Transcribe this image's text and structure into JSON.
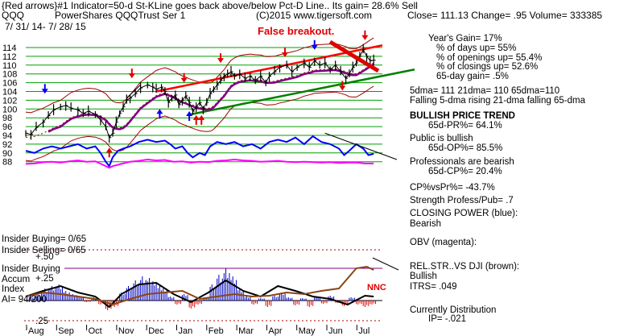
{
  "header": {
    "line1": "{Red arrows}#1 Indicator=50-d St-KLine goes back above/below Pct-D Line.. Its gain= 28.6% Sell",
    "ticker": "QQQ",
    "name": "PowerShares QQQTrust Ser 1",
    "copyright": "(C)2015 www.tigersoft.com",
    "quote": "Close=  111.13  Change= .95 Volume= 333385",
    "dates": "7/ 31/ 14-  7/ 28/ 15"
  },
  "annotations": {
    "false_breakout": "False breakout.",
    "nnc": "NNC"
  },
  "stats": [
    {
      "text": "Year's Gain= 17%",
      "bold": false
    },
    {
      "text": "% of days up= 55%",
      "bold": false
    },
    {
      "text": "% of openings up= 55.4%",
      "bold": false
    },
    {
      "text": "% of closings up= 52.6%",
      "bold": false
    },
    {
      "text": "65-day gain= .5%",
      "bold": false
    },
    {
      "text": "5dma= 111  21dma= 110  65dma=110",
      "bold": false
    },
    {
      "text": "Falling 5-dma rising 21-dma  falling 65-dma",
      "bold": false
    },
    {
      "text": "BULLISH PRICE TREND",
      "bold": true
    },
    {
      "text": "65d-PR%= 64.1%",
      "bold": false
    },
    {
      "text": "Public is bullish",
      "bold": false
    },
    {
      "text": "65d-OP%= 85.5%",
      "bold": false
    },
    {
      "text": "Professionals are bearish",
      "bold": false
    },
    {
      "text": "65d-CP%= 20.4%",
      "bold": false
    },
    {
      "text": "CP%vsPr%= -43.7%",
      "bold": false
    },
    {
      "text": "Strength Profess/Pub= .7",
      "bold": false
    },
    {
      "text": "CLOSING POWER (blue):",
      "bold": false
    },
    {
      "text": "Bearish",
      "bold": false
    },
    {
      "text": "OBV (magenta):",
      "bold": false
    },
    {
      "text": "REL.STR..VS DJI (brown):",
      "bold": false
    },
    {
      "text": "Bullish",
      "bold": false
    },
    {
      "text": "ITRS= .049",
      "bold": false
    },
    {
      "text": "Currently Distribution",
      "bold": false
    },
    {
      "text": "IP= -.021",
      "bold": false
    }
  ],
  "insider": {
    "buying": "Insider Buying= 0/65",
    "selling": "Insider Selling= 0/65",
    "box_label": "Insider Buying",
    "accum": "Accum",
    "index": "Index",
    "ai": "AI= 94/200",
    "p50": "+.50",
    "p25": "+.25",
    "m25": ".25"
  },
  "colors": {
    "price": "#000000",
    "upper_channel": "#ff0000",
    "lower_channel": "#008000",
    "ma65": "#800080",
    "band": "#a00000",
    "closing_power": "#0000ff",
    "obv": "#ff00ff",
    "rel_strength": "#8b4513",
    "accum_up": "#0000c0",
    "accum_down": "#e00000",
    "gridline": "#00a000"
  },
  "chart_data": {
    "type": "line",
    "y_ticks": [
      88,
      90,
      92,
      94,
      96,
      98,
      100,
      102,
      104,
      106,
      108,
      110,
      112,
      114
    ],
    "ylim": [
      86,
      116
    ],
    "x_ticks": [
      "Aug",
      "Sep",
      "Oct",
      "Nov",
      "Dec",
      "Jan",
      "Feb",
      "Mar",
      "Apr",
      "May",
      "Jun",
      "Jul"
    ],
    "price_series": [
      [
        0,
        94.5
      ],
      [
        0.3,
        94.2
      ],
      [
        0.6,
        95.8
      ],
      [
        1,
        97
      ],
      [
        1.3,
        98.5
      ],
      [
        1.6,
        99.8
      ],
      [
        2,
        100.5
      ],
      [
        2.3,
        100.8
      ],
      [
        2.6,
        100.2
      ],
      [
        3,
        99.8
      ],
      [
        3.3,
        99
      ],
      [
        3.6,
        99.5
      ],
      [
        4,
        98.8
      ],
      [
        4.3,
        97.5
      ],
      [
        4.6,
        96
      ],
      [
        4.8,
        93.5
      ],
      [
        5,
        94.5
      ],
      [
        5.2,
        97
      ],
      [
        5.4,
        99
      ],
      [
        5.6,
        100.5
      ],
      [
        5.8,
        102
      ],
      [
        6,
        102.5
      ],
      [
        6.3,
        103.5
      ],
      [
        6.6,
        104.8
      ],
      [
        7,
        105.5
      ],
      [
        7.3,
        105
      ],
      [
        7.5,
        104.5
      ],
      [
        7.8,
        105
      ],
      [
        8,
        104
      ],
      [
        8.2,
        101.5
      ],
      [
        8.4,
        102.5
      ],
      [
        8.6,
        103.2
      ],
      [
        8.8,
        101
      ],
      [
        9,
        102
      ],
      [
        9.2,
        103
      ],
      [
        9.4,
        101.5
      ],
      [
        9.6,
        99.5
      ],
      [
        9.8,
        100.5
      ],
      [
        10,
        101.5
      ],
      [
        10.2,
        100
      ],
      [
        10.4,
        101.5
      ],
      [
        10.6,
        103.5
      ],
      [
        10.8,
        104.5
      ],
      [
        11,
        105.5
      ],
      [
        11.2,
        106.5
      ],
      [
        11.4,
        107.5
      ],
      [
        11.6,
        108
      ],
      [
        11.8,
        108.5
      ],
      [
        12,
        107.5
      ],
      [
        12.3,
        108
      ],
      [
        12.6,
        107
      ],
      [
        12.9,
        107.5
      ],
      [
        13.2,
        106.5
      ],
      [
        13.5,
        107.5
      ],
      [
        13.8,
        106
      ],
      [
        14,
        107.5
      ],
      [
        14.3,
        108.5
      ],
      [
        14.6,
        109.5
      ],
      [
        15,
        110
      ],
      [
        15.3,
        108.5
      ],
      [
        15.6,
        109.5
      ],
      [
        16,
        110.5
      ],
      [
        16.3,
        109.5
      ],
      [
        16.6,
        111
      ],
      [
        16.9,
        110
      ],
      [
        17.2,
        110.5
      ],
      [
        17.5,
        109
      ],
      [
        17.8,
        110
      ],
      [
        18.1,
        108.5
      ],
      [
        18.4,
        107
      ],
      [
        18.6,
        108
      ],
      [
        18.8,
        109.5
      ],
      [
        19,
        110.5
      ],
      [
        19.2,
        112
      ],
      [
        19.4,
        113.5
      ],
      [
        19.6,
        112
      ],
      [
        19.8,
        111
      ],
      [
        20,
        111.1
      ]
    ],
    "x_domain": [
      0,
      20.5
    ],
    "closing_power_series": [
      [
        0,
        90.5
      ],
      [
        0.5,
        90
      ],
      [
        1,
        91
      ],
      [
        1.5,
        91.5
      ],
      [
        2,
        91
      ],
      [
        2.5,
        91.5
      ],
      [
        3,
        92
      ],
      [
        3.5,
        91
      ],
      [
        4,
        91.5
      ],
      [
        4.3,
        90
      ],
      [
        4.6,
        88
      ],
      [
        4.8,
        87
      ],
      [
        5,
        89
      ],
      [
        5.3,
        90.5
      ],
      [
        5.6,
        91
      ],
      [
        6,
        91.5
      ],
      [
        6.5,
        92.5
      ],
      [
        7,
        93
      ],
      [
        7.5,
        92.5
      ],
      [
        8,
        92.8
      ],
      [
        8.3,
        92
      ],
      [
        8.6,
        91
      ],
      [
        9,
        91.5
      ],
      [
        9.3,
        90
      ],
      [
        9.6,
        89
      ],
      [
        10,
        90
      ],
      [
        10.3,
        89.5
      ],
      [
        10.6,
        91.5
      ],
      [
        11,
        92.5
      ],
      [
        11.5,
        92
      ],
      [
        12,
        92.5
      ],
      [
        12.5,
        91.5
      ],
      [
        13,
        92
      ],
      [
        13.5,
        91
      ],
      [
        14,
        92.5
      ],
      [
        14.5,
        93
      ],
      [
        15,
        92.5
      ],
      [
        15.5,
        93.5
      ],
      [
        16,
        92
      ],
      [
        16.5,
        93.8
      ],
      [
        17,
        92.5
      ],
      [
        17.5,
        92
      ],
      [
        18,
        91
      ],
      [
        18.3,
        89.5
      ],
      [
        18.6,
        90.5
      ],
      [
        19,
        92
      ],
      [
        19.4,
        91
      ],
      [
        19.7,
        89.5
      ],
      [
        20,
        89.8
      ]
    ],
    "obv_series": [
      [
        0,
        87.5
      ],
      [
        0.5,
        87.6
      ],
      [
        1,
        87.9
      ],
      [
        1.5,
        88
      ],
      [
        2,
        87.8
      ],
      [
        2.5,
        88.1
      ],
      [
        3,
        88.3
      ],
      [
        3.5,
        88
      ],
      [
        4,
        88.1
      ],
      [
        4.5,
        87.2
      ],
      [
        4.8,
        86.6
      ],
      [
        5,
        87
      ],
      [
        5.5,
        87.5
      ],
      [
        6,
        88
      ],
      [
        6.5,
        88.2
      ],
      [
        7,
        88.5
      ],
      [
        7.5,
        88.3
      ],
      [
        8,
        88.4
      ],
      [
        8.5,
        88
      ],
      [
        9,
        88.1
      ],
      [
        9.5,
        87.8
      ],
      [
        10,
        88
      ],
      [
        10.5,
        87.9
      ],
      [
        11,
        88.2
      ],
      [
        11.5,
        88.3
      ],
      [
        12,
        88.5
      ],
      [
        12.5,
        88.3
      ],
      [
        13,
        88.2
      ],
      [
        13.5,
        88
      ],
      [
        14,
        88.1
      ],
      [
        14.5,
        88.2
      ],
      [
        15,
        88
      ],
      [
        15.5,
        87.9
      ],
      [
        16,
        88
      ],
      [
        16.5,
        87.9
      ],
      [
        17,
        87.8
      ],
      [
        17.5,
        87.9
      ],
      [
        18,
        87.7
      ],
      [
        18.5,
        87.8
      ],
      [
        19,
        87.8
      ],
      [
        19.5,
        87.6
      ],
      [
        20,
        87.6
      ]
    ],
    "pressure_series": [
      [
        0,
        0.05
      ],
      [
        1,
        0.12
      ],
      [
        2,
        0.18
      ],
      [
        3,
        0.1
      ],
      [
        4,
        0.05
      ],
      [
        4.8,
        -0.08
      ],
      [
        5.5,
        0.08
      ],
      [
        6.5,
        0.2
      ],
      [
        7.5,
        0.22
      ],
      [
        8.5,
        0.08
      ],
      [
        9.5,
        -0.02
      ],
      [
        10.5,
        0.1
      ],
      [
        11.5,
        0.25
      ],
      [
        12.5,
        0.12
      ],
      [
        13.5,
        0.05
      ],
      [
        14.5,
        0.18
      ],
      [
        15.5,
        0.12
      ],
      [
        16.5,
        0.05
      ],
      [
        17.5,
        0.02
      ],
      [
        18.5,
        -0.05
      ],
      [
        19.5,
        0.06
      ],
      [
        20,
        0.05
      ]
    ],
    "rel_strength_series": [
      [
        0,
        0.05
      ],
      [
        1,
        0.1
      ],
      [
        2,
        0.08
      ],
      [
        3,
        0.05
      ],
      [
        4,
        0.02
      ],
      [
        5,
        -0.05
      ],
      [
        6,
        0.02
      ],
      [
        7,
        0.08
      ],
      [
        8,
        0.1
      ],
      [
        9,
        0.12
      ],
      [
        10,
        0.02
      ],
      [
        11,
        0.05
      ],
      [
        12,
        0.08
      ],
      [
        13,
        0.05
      ],
      [
        14,
        0.06
      ],
      [
        15,
        0.1
      ],
      [
        16,
        0.08
      ],
      [
        17,
        0.12
      ],
      [
        18,
        0.15
      ],
      [
        19,
        0.4
      ],
      [
        19.6,
        0.42
      ],
      [
        20,
        0.38
      ]
    ],
    "accum_bars": [
      [
        0.2,
        0.05
      ],
      [
        0.6,
        0.1
      ],
      [
        1,
        0.15
      ],
      [
        1.4,
        0.18
      ],
      [
        1.8,
        0.2
      ],
      [
        2.2,
        0.12
      ],
      [
        2.6,
        0.08
      ],
      [
        3,
        0.05
      ],
      [
        3.4,
        -0.02
      ],
      [
        3.8,
        0.04
      ],
      [
        4.2,
        -0.05
      ],
      [
        4.6,
        -0.12
      ],
      [
        5,
        -0.08
      ],
      [
        5.4,
        0.1
      ],
      [
        5.8,
        0.18
      ],
      [
        6.2,
        0.25
      ],
      [
        6.6,
        0.3
      ],
      [
        7,
        0.28
      ],
      [
        7.4,
        0.22
      ],
      [
        7.8,
        0.15
      ],
      [
        8.2,
        0.05
      ],
      [
        8.6,
        -0.05
      ],
      [
        9,
        0.08
      ],
      [
        9.4,
        -0.1
      ],
      [
        9.8,
        -0.05
      ],
      [
        10.2,
        0.04
      ],
      [
        10.6,
        0.2
      ],
      [
        11,
        0.32
      ],
      [
        11.4,
        0.4
      ],
      [
        11.8,
        0.3
      ],
      [
        12.2,
        0.15
      ],
      [
        12.6,
        0.05
      ],
      [
        13,
        -0.05
      ],
      [
        13.4,
        0.03
      ],
      [
        13.8,
        -0.08
      ],
      [
        14.2,
        0.06
      ],
      [
        14.6,
        0.1
      ],
      [
        15,
        0.04
      ],
      [
        15.4,
        -0.06
      ],
      [
        15.8,
        0.03
      ],
      [
        16.2,
        -0.08
      ],
      [
        16.6,
        0.05
      ],
      [
        17,
        -0.04
      ],
      [
        17.4,
        0.06
      ],
      [
        17.8,
        -0.03
      ],
      [
        18.2,
        -0.07
      ],
      [
        18.6,
        0.04
      ],
      [
        19,
        -0.05
      ],
      [
        19.4,
        -0.08
      ],
      [
        19.8,
        -0.05
      ]
    ]
  }
}
